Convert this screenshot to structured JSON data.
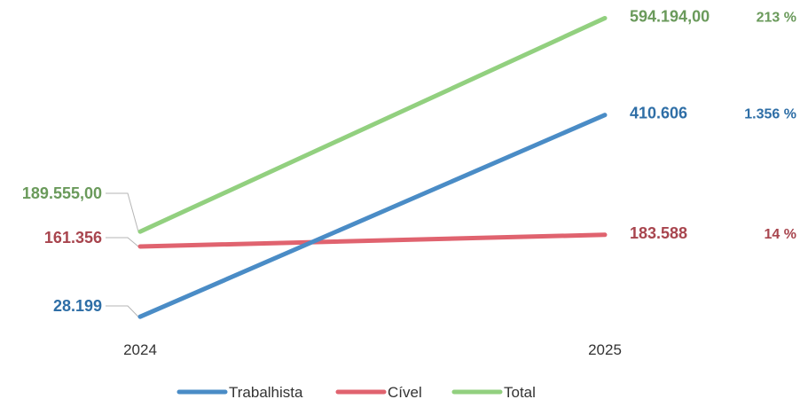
{
  "chart_data": {
    "type": "line",
    "x": [
      "2024",
      "2025"
    ],
    "ylim": [
      0,
      600000
    ],
    "grid": false,
    "legend_position": "bottom",
    "series": [
      {
        "name": "Trabalhista",
        "color": "#4a8cc6",
        "label_color": "#2e6ea6",
        "values": [
          28199,
          410606
        ],
        "value_labels": [
          "28.199",
          "410.606"
        ],
        "change_label": "1.356 %"
      },
      {
        "name": "Cível",
        "color": "#e0636f",
        "label_color": "#a8454e",
        "values": [
          161356,
          183588
        ],
        "value_labels": [
          "161.356",
          "183.588"
        ],
        "change_label": "14 %"
      },
      {
        "name": "Total",
        "color": "#92d07f",
        "label_color": "#6a9a5b",
        "values": [
          189555,
          594194
        ],
        "value_labels": [
          "189.555,00",
          "594.194,00"
        ],
        "change_label": "213 %"
      }
    ]
  }
}
